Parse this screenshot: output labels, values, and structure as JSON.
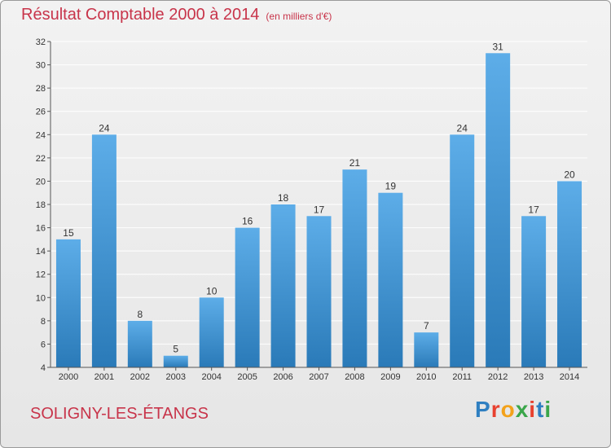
{
  "header": {
    "title": "Résultat Comptable 2000 à 2014",
    "subtitle": "(en milliers d'€)"
  },
  "footer": {
    "commune": "SOLIGNY-LES-ÉTANGS",
    "logo_text": "Proxiti"
  },
  "colors": {
    "bar_top": "#5dade8",
    "bar_bottom": "#2a7ab8",
    "title": "#c8344a",
    "grid": "#ffffff",
    "axis": "#555555"
  },
  "chart_data": {
    "type": "bar",
    "title": "Résultat Comptable 2000 à 2014",
    "subtitle": "(en milliers d'€)",
    "xlabel": "",
    "ylabel": "",
    "categories": [
      "2000",
      "2001",
      "2002",
      "2003",
      "2004",
      "2005",
      "2006",
      "2007",
      "2008",
      "2009",
      "2010",
      "2011",
      "2012",
      "2013",
      "2014"
    ],
    "values": [
      15,
      24,
      8,
      5,
      10,
      16,
      18,
      17,
      21,
      19,
      7,
      24,
      31,
      17,
      20
    ],
    "ylim": [
      4,
      32
    ],
    "yticks": [
      4,
      6,
      8,
      10,
      12,
      14,
      16,
      18,
      20,
      22,
      24,
      26,
      28,
      30,
      32
    ],
    "grid": true,
    "legend": "none"
  }
}
